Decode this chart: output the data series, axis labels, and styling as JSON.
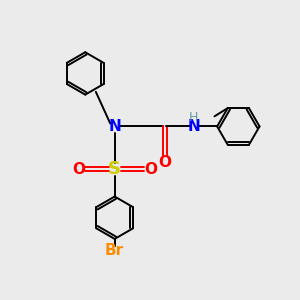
{
  "bg_color": "#ebebeb",
  "atom_colors": {
    "N": "#0000ff",
    "O": "#ff0000",
    "S": "#cccc00",
    "Br": "#ff8c00",
    "H": "#008080",
    "C": "#000000"
  },
  "bond_color": "#000000",
  "font_size_atoms": 11,
  "font_size_small": 9,
  "lw": 1.4,
  "ring_r": 0.72
}
